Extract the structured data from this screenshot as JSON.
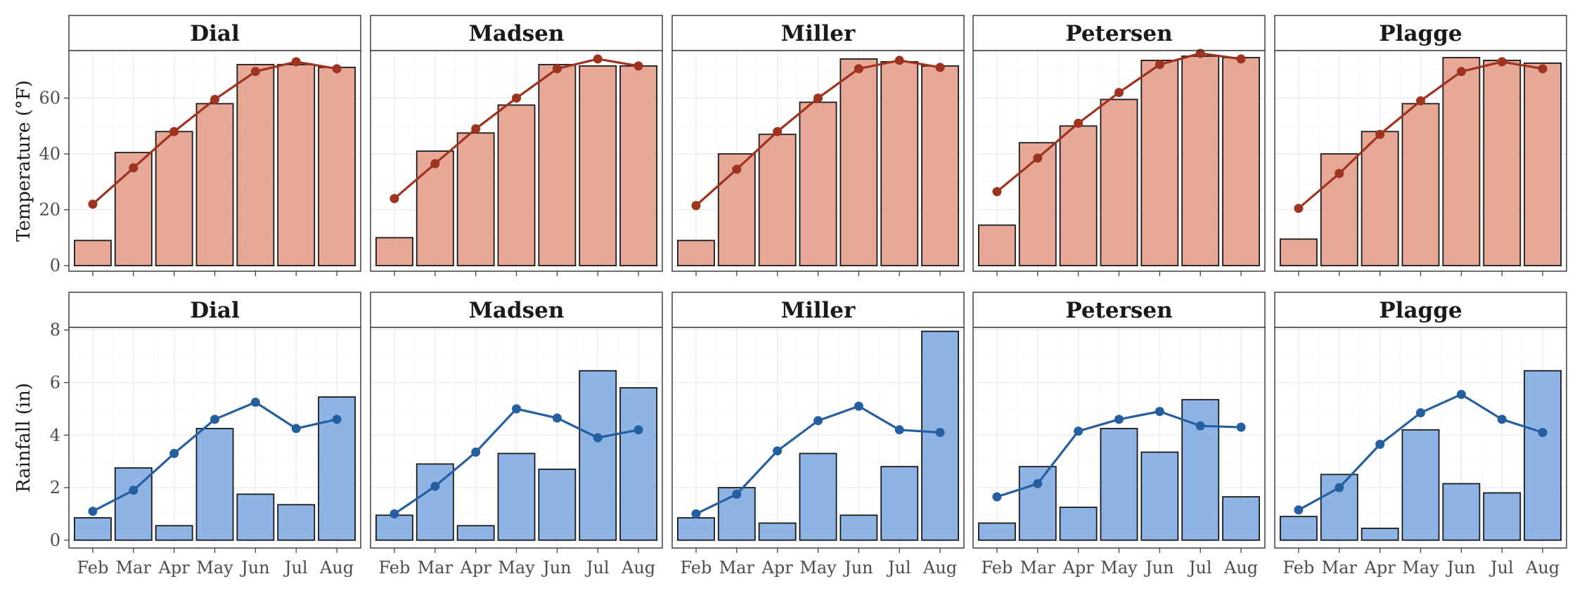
{
  "chart_data": [
    {
      "type": "bar",
      "row": "temperature",
      "ylabel": "Temperature (°F)",
      "ylim": [
        -2,
        77
      ],
      "yticks": [
        0,
        20,
        40,
        60
      ],
      "categories": [
        "Feb",
        "Mar",
        "Apr",
        "May",
        "Jun",
        "Jul",
        "Aug"
      ],
      "colors": {
        "bar": "#E8A898",
        "line": "#9E3420"
      },
      "facets": [
        {
          "name": "Dial",
          "bars": [
            9,
            40.5,
            48,
            58,
            72,
            72,
            71
          ],
          "line": [
            22,
            35,
            48,
            59.5,
            69.5,
            73,
            70.5
          ]
        },
        {
          "name": "Madsen",
          "bars": [
            10,
            41,
            47.5,
            57.5,
            72,
            71.5,
            71.5
          ],
          "line": [
            24,
            36.5,
            49,
            60,
            70.5,
            74,
            71.5
          ]
        },
        {
          "name": "Miller",
          "bars": [
            9,
            40,
            47,
            58.5,
            74,
            73,
            71.5
          ],
          "line": [
            21.5,
            34.5,
            48,
            60,
            70.5,
            73.5,
            71
          ]
        },
        {
          "name": "Petersen",
          "bars": [
            14.5,
            44,
            50,
            59.5,
            73.5,
            75,
            74.5
          ],
          "line": [
            26.5,
            38.5,
            51,
            62,
            72,
            76,
            74
          ]
        },
        {
          "name": "Plagge",
          "bars": [
            9.5,
            40,
            48,
            58,
            74.5,
            73.5,
            72.5
          ],
          "line": [
            20.5,
            33,
            47,
            59,
            69.5,
            73,
            70.5
          ]
        }
      ]
    },
    {
      "type": "bar",
      "row": "rainfall",
      "ylabel": "Rainfall (in)",
      "ylim": [
        -0.3,
        8.1
      ],
      "yticks": [
        0,
        2,
        4,
        6,
        8
      ],
      "categories": [
        "Feb",
        "Mar",
        "Apr",
        "May",
        "Jun",
        "Jul",
        "Aug"
      ],
      "colors": {
        "bar": "#8DB4E5",
        "line": "#255FA0"
      },
      "facets": [
        {
          "name": "Dial",
          "bars": [
            0.85,
            2.75,
            0.55,
            4.25,
            1.75,
            1.35,
            5.45
          ],
          "line": [
            1.1,
            1.9,
            3.3,
            4.6,
            5.25,
            4.25,
            4.6
          ]
        },
        {
          "name": "Madsen",
          "bars": [
            0.95,
            2.9,
            0.55,
            3.3,
            2.7,
            6.45,
            5.8
          ],
          "line": [
            1.0,
            2.05,
            3.35,
            5.0,
            4.65,
            3.9,
            4.2
          ]
        },
        {
          "name": "Miller",
          "bars": [
            0.85,
            2.0,
            0.65,
            3.3,
            0.95,
            2.8,
            7.95
          ],
          "line": [
            1.0,
            1.75,
            3.4,
            4.55,
            5.1,
            4.2,
            4.1
          ]
        },
        {
          "name": "Petersen",
          "bars": [
            0.65,
            2.8,
            1.25,
            4.25,
            3.35,
            5.35,
            1.65
          ],
          "line": [
            1.65,
            2.15,
            4.15,
            4.6,
            4.9,
            4.35,
            4.3
          ]
        },
        {
          "name": "Plagge",
          "bars": [
            0.9,
            2.5,
            0.45,
            4.2,
            2.15,
            1.8,
            6.45
          ],
          "line": [
            1.15,
            2.0,
            3.65,
            4.85,
            5.55,
            4.6,
            4.1
          ]
        }
      ]
    }
  ]
}
